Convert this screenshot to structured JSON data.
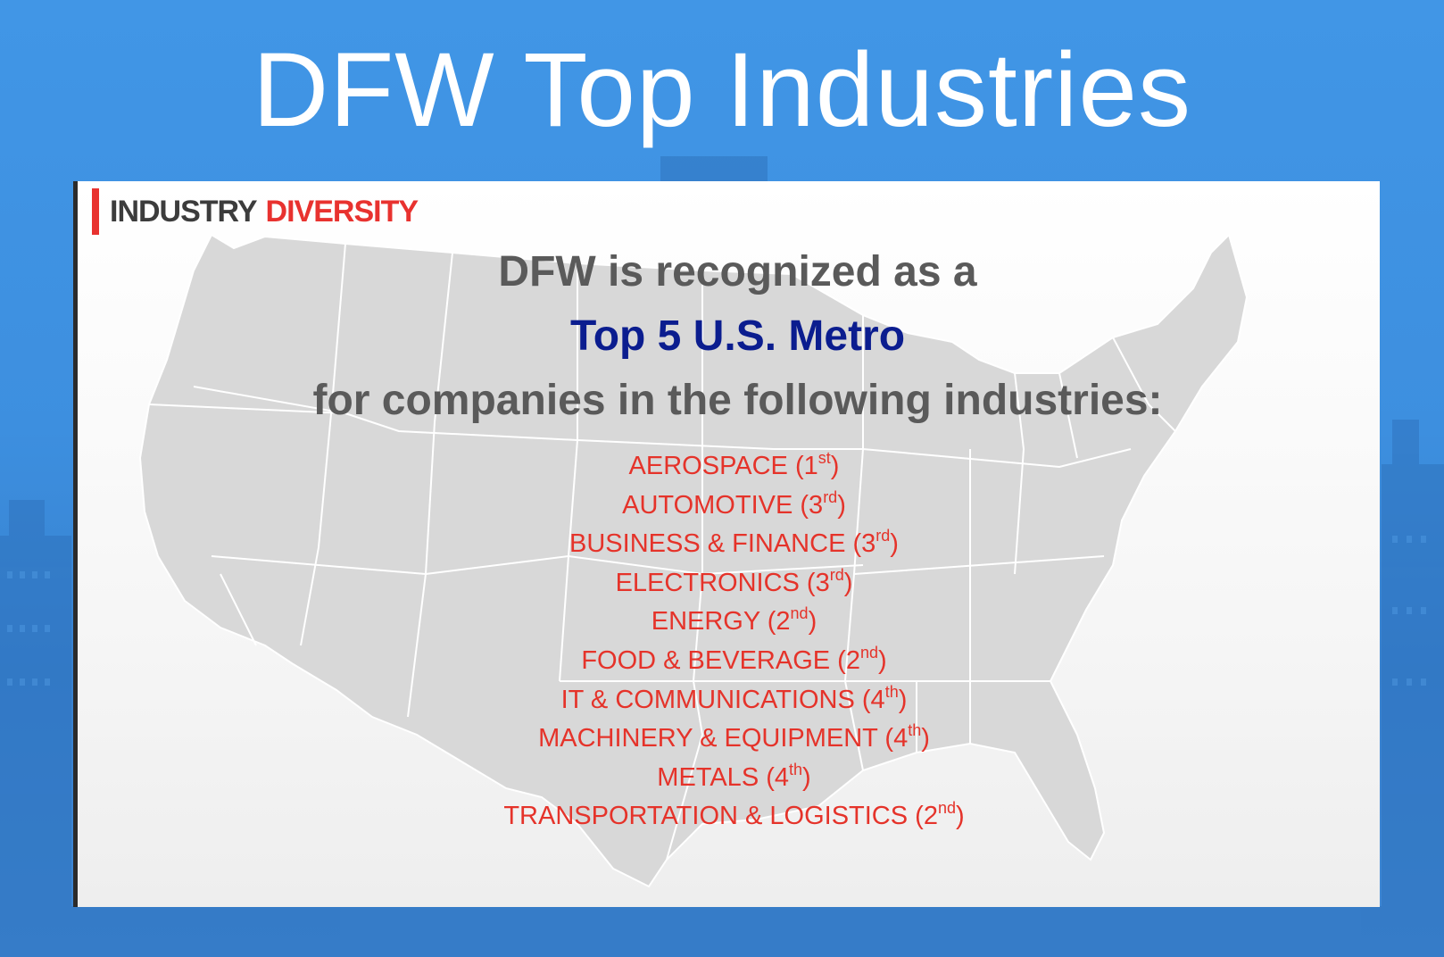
{
  "title": "DFW Top Industries",
  "slide": {
    "section_word1": "INDUSTRY",
    "section_word2": "DIVERSITY",
    "headline_line1": "DFW is recognized as a",
    "headline_line2": "Top 5 U.S. Metro",
    "headline_line3": "for companies in the following industries:",
    "industries": [
      {
        "name": "AEROSPACE",
        "rank": "1",
        "suffix": "st"
      },
      {
        "name": "AUTOMOTIVE",
        "rank": "3",
        "suffix": "rd"
      },
      {
        "name": "BUSINESS & FINANCE",
        "rank": "3",
        "suffix": "rd"
      },
      {
        "name": "ELECTRONICS",
        "rank": "3",
        "suffix": "rd"
      },
      {
        "name": "ENERGY",
        "rank": "2",
        "suffix": "nd"
      },
      {
        "name": "FOOD & BEVERAGE",
        "rank": "2",
        "suffix": "nd"
      },
      {
        "name": "IT & COMMUNICATIONS",
        "rank": "4",
        "suffix": "th"
      },
      {
        "name": "MACHINERY & EQUIPMENT",
        "rank": "4",
        "suffix": "th"
      },
      {
        "name": "METALS",
        "rank": "4",
        "suffix": "th"
      },
      {
        "name": "TRANSPORTATION & LOGISTICS",
        "rank": "2",
        "suffix": "nd"
      }
    ]
  },
  "colors": {
    "background_blue": "#3f93e4",
    "accent_red": "#e8322f",
    "industry_red": "#e5332a",
    "headline_gray": "#5a5a5a",
    "headline_navy": "#0b1d8f",
    "map_gray": "#d8d8d8"
  }
}
